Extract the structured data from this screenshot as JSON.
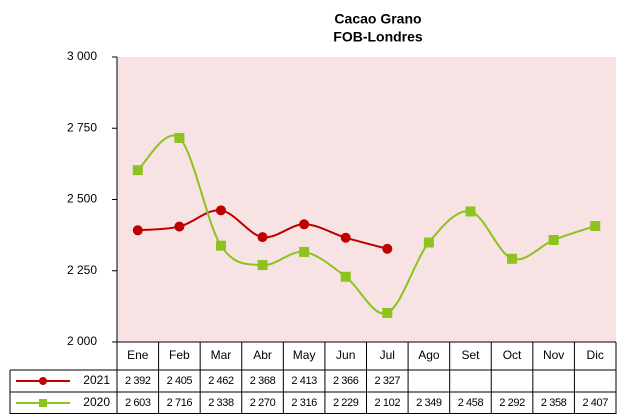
{
  "chart_data": {
    "type": "line",
    "title": "Cacao Grano",
    "subtitle": "FOB-Londres",
    "categories": [
      "Ene",
      "Feb",
      "Mar",
      "Abr",
      "May",
      "Jun",
      "Jul",
      "Ago",
      "Set",
      "Oct",
      "Nov",
      "Dic"
    ],
    "series": [
      {
        "name": "2021",
        "color": "#c00000",
        "marker": "circle",
        "values": [
          2392,
          2405,
          2462,
          2368,
          2413,
          2366,
          2327,
          null,
          null,
          null,
          null,
          null
        ],
        "value_labels": [
          "2 392",
          "2 405",
          "2 462",
          "2 368",
          "2 413",
          "2 366",
          "2 327",
          null,
          null,
          null,
          null,
          null
        ]
      },
      {
        "name": "2020",
        "color": "#8dc21f",
        "marker": "square",
        "values": [
          2603,
          2716,
          2338,
          2270,
          2316,
          2229,
          2102,
          2349,
          2458,
          2292,
          2358,
          2407
        ],
        "value_labels": [
          "2 603",
          "2 716",
          "2 338",
          "2 270",
          "2 316",
          "2 229",
          "2 102",
          "2 349",
          "2 458",
          "2 292",
          "2 358",
          "2 407"
        ]
      }
    ],
    "ylim": [
      2000,
      3000
    ],
    "yticks": [
      {
        "value": 2000,
        "label": "2 000"
      },
      {
        "value": 2250,
        "label": "2 250"
      },
      {
        "value": 2500,
        "label": "2 500"
      },
      {
        "value": 2750,
        "label": "2 750"
      },
      {
        "value": 3000,
        "label": "3 000"
      }
    ],
    "smooth": true,
    "data_table": true
  }
}
